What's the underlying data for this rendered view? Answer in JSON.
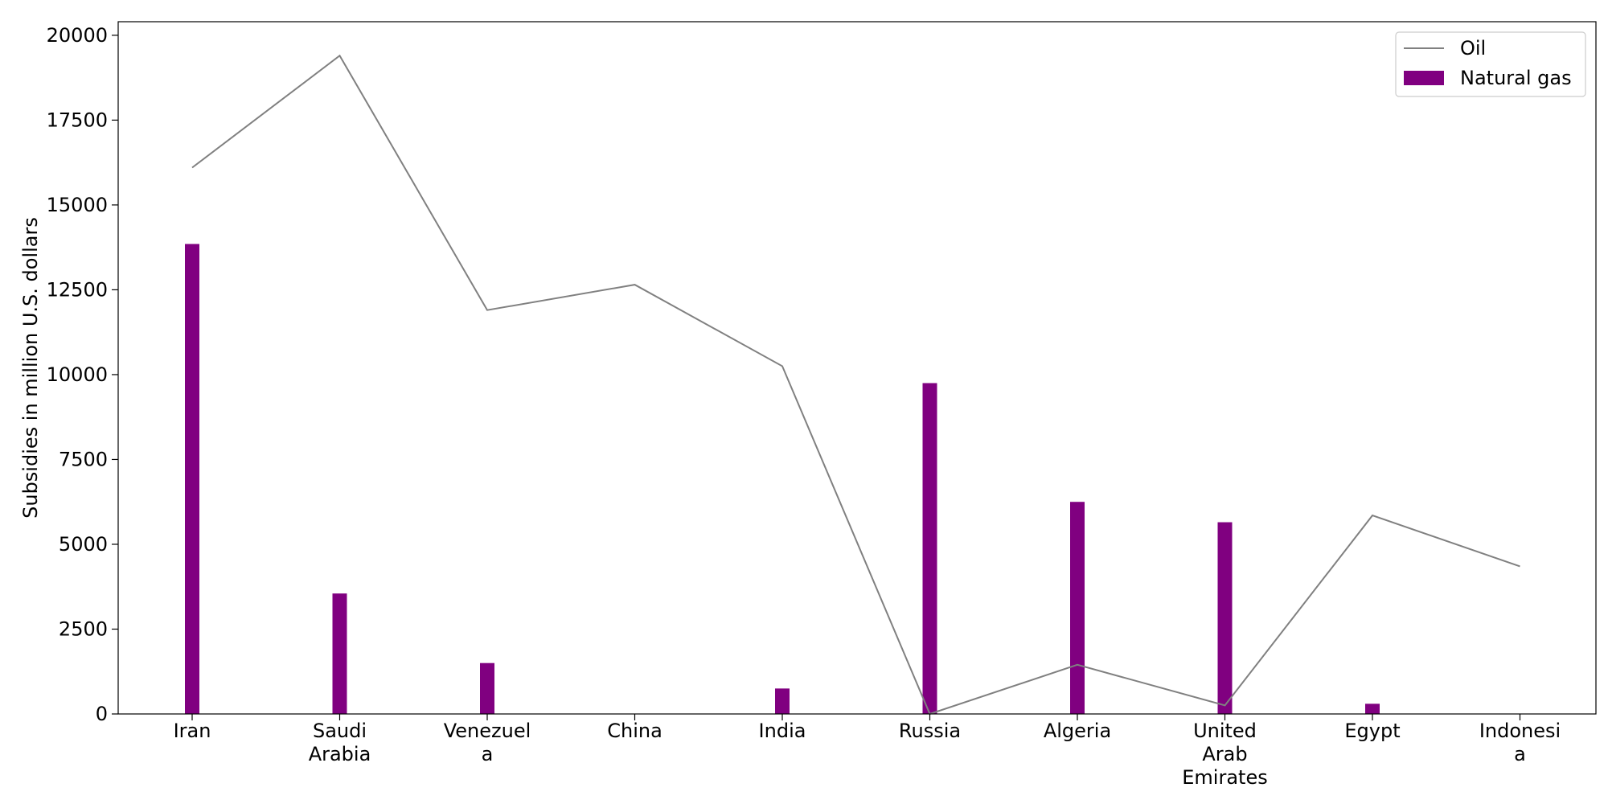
{
  "chart_data": {
    "type": "bar",
    "title": "",
    "xlabel": "",
    "ylabel": "Subsidies in million U.S. dollars",
    "ylim": [
      0,
      20400
    ],
    "yticks": [
      0,
      2500,
      5000,
      7500,
      10000,
      12500,
      15000,
      17500,
      20000
    ],
    "grid": false,
    "legend_position": "top-right",
    "categories": [
      [
        "Iran"
      ],
      [
        "Saudi",
        "Arabia"
      ],
      [
        "Venezuel",
        "a"
      ],
      [
        "China"
      ],
      [
        "India"
      ],
      [
        "Russia"
      ],
      [
        "Algeria"
      ],
      [
        "United",
        "Arab",
        "Emirates"
      ],
      [
        "Egypt"
      ],
      [
        "Indonesi",
        "a"
      ]
    ],
    "series": [
      {
        "name": "Oil",
        "type": "line",
        "color": "#808080",
        "values": [
          16100,
          19400,
          11900,
          12650,
          10250,
          0,
          1450,
          250,
          5850,
          4350
        ]
      },
      {
        "name": "Natural gas",
        "type": "bar",
        "color": "#800080",
        "values": [
          13850,
          3550,
          1500,
          0,
          750,
          9750,
          6250,
          5650,
          300,
          0
        ]
      }
    ]
  }
}
